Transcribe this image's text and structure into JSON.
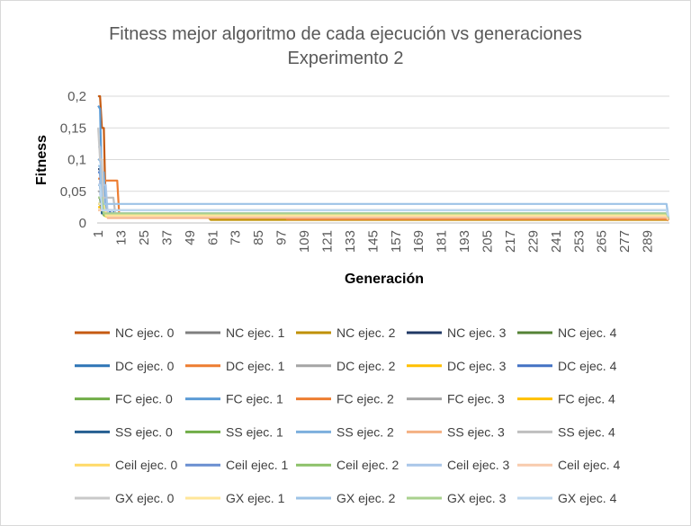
{
  "chart_data": {
    "type": "line",
    "title": "Fitness mejor algoritmo de cada ejecución vs generaciones",
    "subtitle": "Experimento 2",
    "xlabel": "Generación",
    "ylabel": "Fitness",
    "ylim": [
      0,
      0.2
    ],
    "y_ticks": [
      "0",
      "0,05",
      "0,1",
      "0,15",
      "0,2"
    ],
    "x_tick_labels": [
      "1",
      "13",
      "25",
      "37",
      "49",
      "61",
      "73",
      "85",
      "97",
      "109",
      "121",
      "133",
      "145",
      "157",
      "169",
      "181",
      "193",
      "205",
      "217",
      "229",
      "241",
      "253",
      "265",
      "277",
      "289"
    ],
    "xlim": [
      1,
      300
    ],
    "grid": "horizontal",
    "legend_position": "bottom",
    "series": [
      {
        "name": "NC ejec. 0",
        "color": "#c55a11",
        "points": [
          [
            1,
            0.2
          ],
          [
            2,
            0.2
          ],
          [
            3,
            0.15
          ],
          [
            5,
            0.02
          ],
          [
            8,
            0.012
          ],
          [
            40,
            0.008
          ],
          [
            70,
            0.006
          ],
          [
            300,
            0.004
          ]
        ]
      },
      {
        "name": "NC ejec. 1",
        "color": "#7f7f7f",
        "points": [
          [
            1,
            0.03
          ],
          [
            3,
            0.02
          ],
          [
            6,
            0.012
          ],
          [
            20,
            0.008
          ],
          [
            90,
            0.006
          ],
          [
            300,
            0.004
          ]
        ]
      },
      {
        "name": "NC ejec. 2",
        "color": "#bf9000",
        "points": [
          [
            1,
            0.02
          ],
          [
            4,
            0.012
          ],
          [
            15,
            0.008
          ],
          [
            60,
            0.005
          ],
          [
            300,
            0.004
          ]
        ]
      },
      {
        "name": "NC ejec. 3",
        "color": "#203864",
        "points": [
          [
            1,
            0.085
          ],
          [
            2,
            0.085
          ],
          [
            3,
            0.02
          ],
          [
            8,
            0.012
          ],
          [
            30,
            0.008
          ],
          [
            300,
            0.005
          ]
        ]
      },
      {
        "name": "NC ejec. 4",
        "color": "#548235",
        "points": [
          [
            1,
            0.04
          ],
          [
            3,
            0.015
          ],
          [
            10,
            0.009
          ],
          [
            300,
            0.005
          ]
        ]
      },
      {
        "name": "DC ejec. 0",
        "color": "#2e75b6",
        "points": [
          [
            1,
            0.06
          ],
          [
            3,
            0.02
          ],
          [
            10,
            0.01
          ],
          [
            300,
            0.006
          ]
        ]
      },
      {
        "name": "DC ejec. 1",
        "color": "#ed7d31",
        "points": [
          [
            1,
            0.07
          ],
          [
            4,
            0.067
          ],
          [
            11,
            0.067
          ],
          [
            12,
            0.015
          ],
          [
            20,
            0.012
          ],
          [
            100,
            0.006
          ],
          [
            300,
            0.004
          ]
        ]
      },
      {
        "name": "DC ejec. 2",
        "color": "#a5a5a5",
        "points": [
          [
            1,
            0.05
          ],
          [
            5,
            0.015
          ],
          [
            22,
            0.013
          ],
          [
            50,
            0.013
          ],
          [
            52,
            0.008
          ],
          [
            300,
            0.006
          ]
        ]
      },
      {
        "name": "DC ejec. 3",
        "color": "#ffc000",
        "points": [
          [
            1,
            0.03
          ],
          [
            4,
            0.012
          ],
          [
            300,
            0.005
          ]
        ]
      },
      {
        "name": "DC ejec. 4",
        "color": "#4472c4",
        "points": [
          [
            1,
            0.08
          ],
          [
            2,
            0.08
          ],
          [
            3,
            0.02
          ],
          [
            8,
            0.01
          ],
          [
            300,
            0.006
          ]
        ]
      },
      {
        "name": "FC ejec. 0",
        "color": "#70ad47",
        "points": [
          [
            1,
            0.03
          ],
          [
            4,
            0.012
          ],
          [
            300,
            0.005
          ]
        ]
      },
      {
        "name": "FC ejec. 1",
        "color": "#5b9bd5",
        "points": [
          [
            1,
            0.185
          ],
          [
            2,
            0.18
          ],
          [
            3,
            0.05
          ],
          [
            5,
            0.015
          ],
          [
            14,
            0.01
          ],
          [
            300,
            0.007
          ]
        ]
      },
      {
        "name": "FC ejec. 2",
        "color": "#ed7d31",
        "points": [
          [
            1,
            0.02
          ],
          [
            6,
            0.01
          ],
          [
            300,
            0.004
          ]
        ]
      },
      {
        "name": "FC ejec. 3",
        "color": "#a5a5a5",
        "points": [
          [
            1,
            0.03
          ],
          [
            5,
            0.015
          ],
          [
            22,
            0.015
          ],
          [
            50,
            0.015
          ],
          [
            52,
            0.01
          ],
          [
            300,
            0.008
          ]
        ]
      },
      {
        "name": "FC ejec. 4",
        "color": "#ffc000",
        "points": [
          [
            1,
            0.025
          ],
          [
            4,
            0.012
          ],
          [
            300,
            0.005
          ]
        ]
      },
      {
        "name": "SS ejec. 0",
        "color": "#255e91",
        "points": [
          [
            1,
            0.06
          ],
          [
            3,
            0.015
          ],
          [
            300,
            0.006
          ]
        ]
      },
      {
        "name": "SS ejec. 1",
        "color": "#70ad47",
        "points": [
          [
            1,
            0.02
          ],
          [
            5,
            0.01
          ],
          [
            300,
            0.005
          ]
        ]
      },
      {
        "name": "SS ejec. 2",
        "color": "#7cafdd",
        "points": [
          [
            1,
            0.1
          ],
          [
            3,
            0.08
          ],
          [
            5,
            0.015
          ],
          [
            300,
            0.008
          ]
        ]
      },
      {
        "name": "SS ejec. 3",
        "color": "#f4b183",
        "points": [
          [
            1,
            0.02
          ],
          [
            6,
            0.008
          ],
          [
            300,
            0.004
          ]
        ]
      },
      {
        "name": "SS ejec. 4",
        "color": "#bfbfbf",
        "points": [
          [
            1,
            0.04
          ],
          [
            8,
            0.04
          ],
          [
            10,
            0.015
          ],
          [
            300,
            0.01
          ]
        ]
      },
      {
        "name": "Ceil ejec. 0",
        "color": "#ffd966",
        "points": [
          [
            1,
            0.02
          ],
          [
            5,
            0.01
          ],
          [
            300,
            0.006
          ]
        ]
      },
      {
        "name": "Ceil ejec. 1",
        "color": "#698ed0",
        "points": [
          [
            1,
            0.06
          ],
          [
            3,
            0.02
          ],
          [
            300,
            0.007
          ]
        ]
      },
      {
        "name": "Ceil ejec. 2",
        "color": "#8cc168",
        "points": [
          [
            1,
            0.03
          ],
          [
            4,
            0.012
          ],
          [
            300,
            0.006
          ]
        ]
      },
      {
        "name": "Ceil ejec. 3",
        "color": "#a9c6e8",
        "points": [
          [
            1,
            0.12
          ],
          [
            3,
            0.06
          ],
          [
            6,
            0.015
          ],
          [
            300,
            0.009
          ]
        ]
      },
      {
        "name": "Ceil ejec. 4",
        "color": "#f8cbad",
        "points": [
          [
            1,
            0.02
          ],
          [
            6,
            0.01
          ],
          [
            300,
            0.006
          ]
        ]
      },
      {
        "name": "GX ejec. 0",
        "color": "#c9c9c9",
        "points": [
          [
            1,
            0.15
          ],
          [
            2,
            0.1
          ],
          [
            4,
            0.02
          ],
          [
            300,
            0.01
          ]
        ]
      },
      {
        "name": "GX ejec. 1",
        "color": "#ffe699",
        "points": [
          [
            1,
            0.03
          ],
          [
            5,
            0.012
          ],
          [
            300,
            0.008
          ]
        ]
      },
      {
        "name": "GX ejec. 2",
        "color": "#9dc3e6",
        "points": [
          [
            1,
            0.09
          ],
          [
            3,
            0.03
          ],
          [
            300,
            0.009
          ]
        ]
      },
      {
        "name": "GX ejec. 3",
        "color": "#a9d18e",
        "points": [
          [
            1,
            0.04
          ],
          [
            4,
            0.015
          ],
          [
            300,
            0.009
          ]
        ]
      },
      {
        "name": "GX ejec. 4",
        "color": "#bdd7ee",
        "points": [
          [
            1,
            0.06
          ],
          [
            3,
            0.02
          ],
          [
            300,
            0.01
          ]
        ]
      }
    ]
  }
}
